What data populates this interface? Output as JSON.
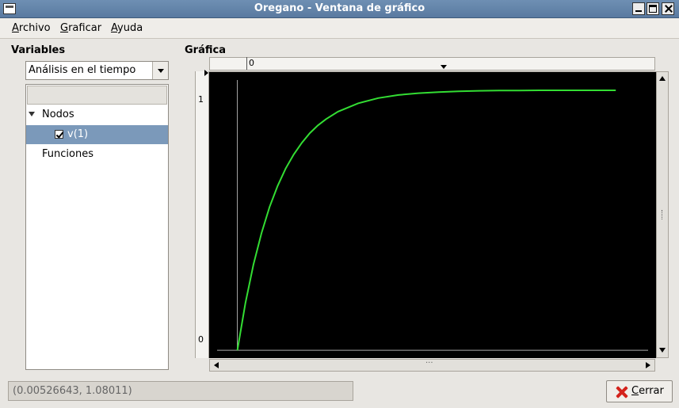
{
  "window": {
    "title": "Oregano - Ventana de gráfico"
  },
  "menu": {
    "items": [
      {
        "first": "A",
        "rest": "rchivo"
      },
      {
        "first": "G",
        "rest": "raficar"
      },
      {
        "first": "A",
        "rest": "yuda"
      }
    ]
  },
  "left": {
    "header": "Variables",
    "analysis_combo": {
      "value": "Análisis en el tiempo"
    },
    "tree": {
      "nodes_label": "Nodos",
      "node_items": [
        {
          "label": "v(1)",
          "checked": true
        }
      ],
      "functions_label": "Funciones"
    }
  },
  "graph": {
    "header": "Gráfica",
    "ruler_top_label": "0",
    "y_tick_1": "1",
    "y_tick_0": "0",
    "scroll_grip": "..."
  },
  "chart_data": {
    "type": "line",
    "series": [
      {
        "color": "#33dd33",
        "x": [
          0.0,
          0.2,
          0.4,
          0.6,
          0.8,
          1.0,
          1.2,
          1.4,
          1.6,
          1.8,
          2.0,
          2.2,
          2.5,
          3.0,
          3.5,
          4.0,
          4.5,
          5.0,
          5.5,
          6.0,
          6.5,
          7.0,
          7.5,
          8.0,
          8.5,
          9.0,
          9.4
        ],
        "y": [
          0.0,
          0.181,
          0.33,
          0.451,
          0.551,
          0.632,
          0.699,
          0.753,
          0.798,
          0.835,
          0.865,
          0.889,
          0.918,
          0.95,
          0.97,
          0.982,
          0.989,
          0.993,
          0.996,
          0.998,
          0.999,
          0.999,
          1.0,
          1.0,
          1.0,
          1.0,
          1.0
        ]
      }
    ],
    "xlim": [
      -0.7,
      10.4
    ],
    "ylim": [
      -0.03,
      1.07
    ],
    "grid": false
  },
  "status": {
    "coords": "(0.00526643, 1.08011)"
  },
  "buttons": {
    "close": {
      "first": "C",
      "rest": "errar"
    }
  }
}
